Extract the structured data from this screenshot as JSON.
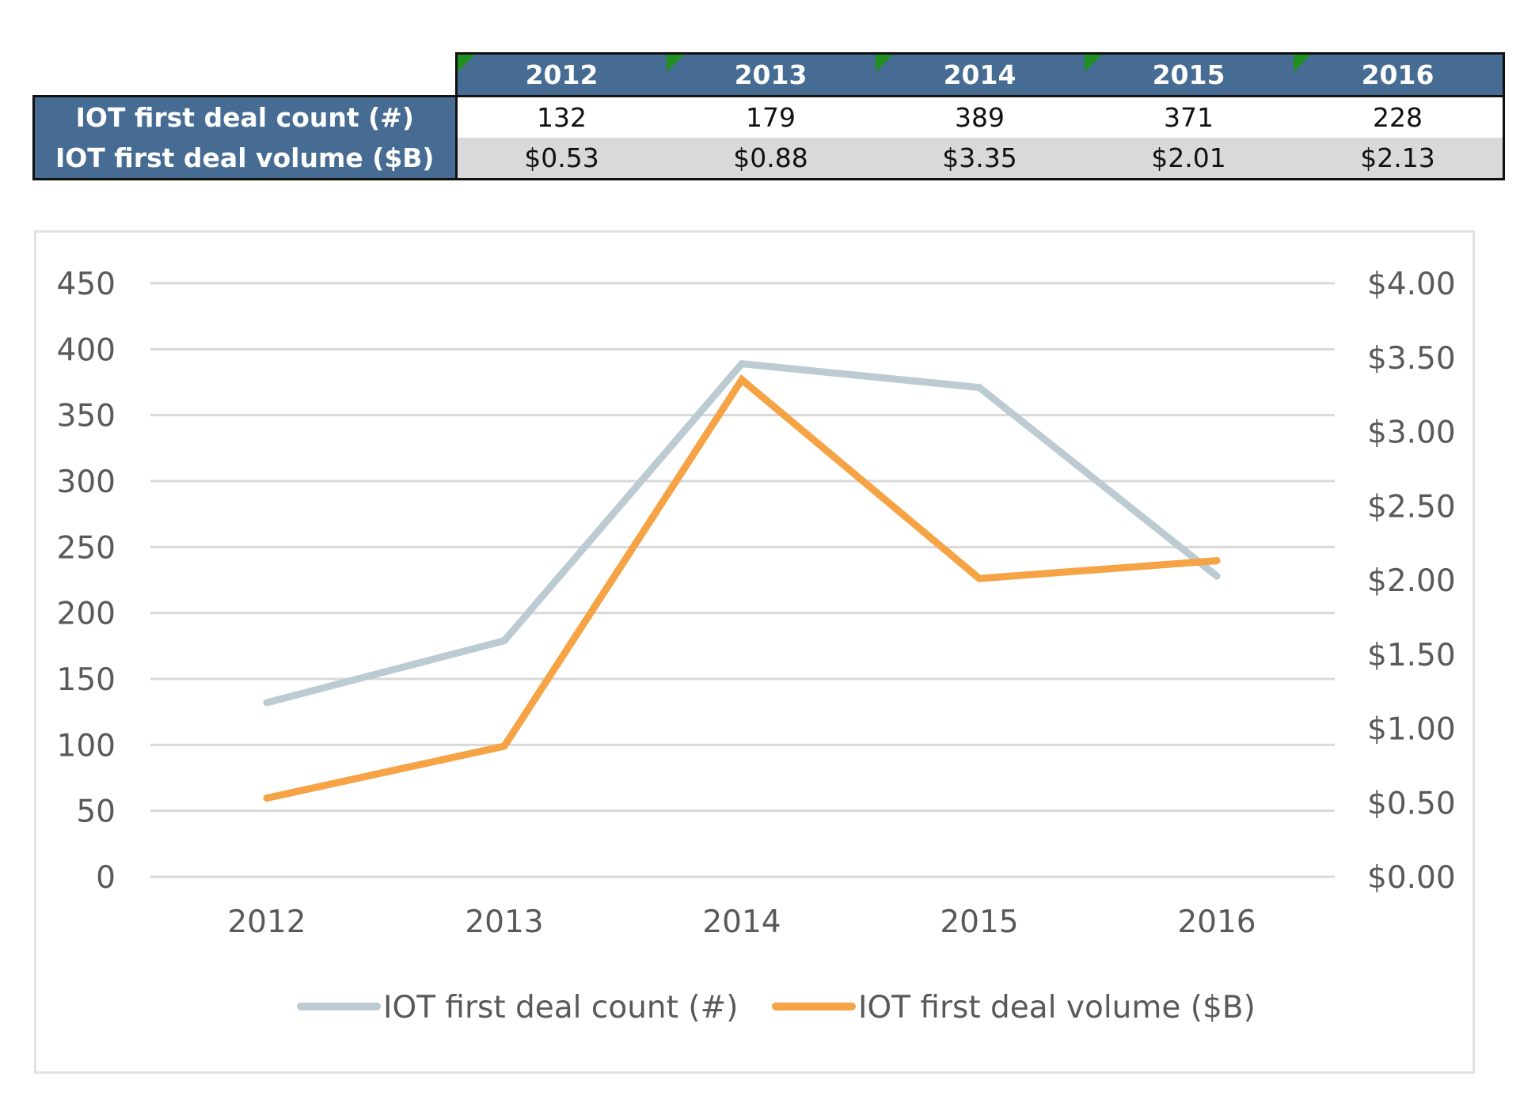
{
  "table": {
    "years": [
      "2012",
      "2013",
      "2014",
      "2015",
      "2016"
    ],
    "rows": [
      {
        "label": "IOT first deal count (#)",
        "values": [
          "132",
          "179",
          "389",
          "371",
          "228"
        ]
      },
      {
        "label": "IOT first deal volume ($B)",
        "values": [
          "$0.53",
          "$0.88",
          "$3.35",
          "$2.01",
          "$2.13"
        ]
      }
    ]
  },
  "chart_data": {
    "type": "line",
    "title": "",
    "xlabel": "",
    "ylabel": "",
    "x": [
      "2012",
      "2013",
      "2014",
      "2015",
      "2016"
    ],
    "y_left": {
      "range": [
        0,
        450
      ],
      "ticks": [
        "0",
        "50",
        "100",
        "150",
        "200",
        "250",
        "300",
        "350",
        "400",
        "450"
      ]
    },
    "y_right": {
      "range": [
        0,
        4
      ],
      "ticks": [
        "$0.00",
        "$0.50",
        "$1.00",
        "$1.50",
        "$2.00",
        "$2.50",
        "$3.00",
        "$3.50",
        "$4.00"
      ]
    },
    "grid": true,
    "legend_position": "bottom",
    "series": [
      {
        "name": "IOT first deal count (#)",
        "axis": "left",
        "color": "#bccbd2",
        "values": [
          132,
          179,
          389,
          371,
          228
        ]
      },
      {
        "name": "IOT first deal volume ($B)",
        "axis": "right",
        "color": "#f5a345",
        "values": [
          0.53,
          0.88,
          3.35,
          2.01,
          2.13
        ]
      }
    ]
  }
}
